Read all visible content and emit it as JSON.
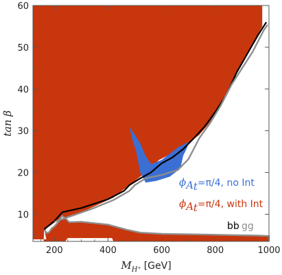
{
  "chart_data": {
    "type": "region",
    "xlabel": {
      "symbol": "M",
      "subscript": "H⁺",
      "unit": "[GeV]"
    },
    "ylabel": "tan β",
    "xlim": [
      120,
      1000
    ],
    "ylim": [
      3.5,
      60
    ],
    "x_ticks": [
      200,
      400,
      600,
      800,
      1000
    ],
    "y_ticks": [
      10,
      20,
      30,
      40,
      50,
      60
    ],
    "grid": false,
    "legend_position": "bottom-right",
    "colors": {
      "with_int": "#C8360D",
      "no_int": "#3B6FD4",
      "bb_line": "#000000",
      "gg_line": "#8E8E8E",
      "background": "#FFFFFF"
    },
    "regions": [
      {
        "label": "ϕ_{A_t}=π/4, with Int",
        "label_parts": {
          "lhs": "ϕ",
          "sub": "A",
          "subsub": "t",
          "rhs": "=π/4, with Int"
        },
        "color": "#C8360D",
        "boundary": [
          [
            120,
            60
          ],
          [
            975,
            60
          ],
          [
            975,
            55
          ],
          [
            880,
            44
          ],
          [
            820,
            36
          ],
          [
            780,
            32
          ],
          [
            740,
            29
          ],
          [
            700,
            27
          ],
          [
            670,
            26
          ],
          [
            620,
            24
          ],
          [
            590,
            23
          ],
          [
            540,
            20
          ],
          [
            480,
            17
          ],
          [
            420,
            14
          ],
          [
            320,
            11
          ],
          [
            250,
            9.5
          ],
          [
            200,
            8
          ],
          [
            168,
            6.5
          ],
          [
            165,
            5.5
          ],
          [
            170,
            4
          ],
          [
            120,
            4
          ]
        ],
        "excluded_island": [
          [
            162,
            6.3
          ],
          [
            172,
            5.5
          ],
          [
            180,
            5.7
          ],
          [
            190,
            6.6
          ],
          [
            200,
            7.1
          ],
          [
            215,
            8.2
          ],
          [
            228,
            9.6
          ],
          [
            240,
            9.1
          ],
          [
            255,
            8.1
          ],
          [
            300,
            8.2
          ],
          [
            400,
            7.5
          ],
          [
            470,
            6.3
          ],
          [
            520,
            5.6
          ],
          [
            600,
            5.3
          ],
          [
            700,
            5.2
          ],
          [
            800,
            5.1
          ],
          [
            880,
            5.0
          ],
          [
            960,
            4.9
          ],
          [
            1000,
            4.8
          ],
          [
            1000,
            3.5
          ],
          [
            420,
            3.5
          ],
          [
            415,
            4.3
          ],
          [
            250,
            4.3
          ],
          [
            240,
            3.5
          ],
          [
            160,
            3.5
          ]
        ]
      },
      {
        "label": "ϕ_{A_t}=π/4, no Int",
        "label_parts": {
          "lhs": "ϕ",
          "sub": "A",
          "subsub": "t",
          "rhs": "=π/4, no Int"
        },
        "color": "#3B6FD4",
        "boundary": [
          [
            480,
            31
          ],
          [
            520,
            27
          ],
          [
            540,
            24
          ],
          [
            560,
            22
          ],
          [
            600,
            23
          ],
          [
            640,
            25
          ],
          [
            660,
            26
          ],
          [
            690,
            27
          ],
          [
            700,
            27.4
          ],
          [
            695,
            26
          ],
          [
            680,
            24
          ],
          [
            670,
            21
          ],
          [
            630,
            19
          ],
          [
            580,
            18
          ],
          [
            540,
            17.6
          ],
          [
            520,
            20
          ],
          [
            505,
            25
          ],
          [
            490,
            28
          ]
        ]
      }
    ],
    "contours": [
      {
        "name": "bb",
        "color": "#000000",
        "points": [
          [
            162,
            6.4
          ],
          [
            200,
            8.4
          ],
          [
            230,
            10.5
          ],
          [
            300,
            11.5
          ],
          [
            400,
            13.6
          ],
          [
            460,
            15.6
          ],
          [
            480,
            17
          ],
          [
            520,
            18.6
          ],
          [
            560,
            20
          ],
          [
            600,
            22.2
          ],
          [
            640,
            23.6
          ],
          [
            680,
            25.6
          ],
          [
            720,
            28.2
          ],
          [
            760,
            31
          ],
          [
            800,
            34.5
          ],
          [
            840,
            38.5
          ],
          [
            880,
            44
          ],
          [
            920,
            48.5
          ],
          [
            960,
            53
          ],
          [
            990,
            56
          ]
        ]
      },
      {
        "name": "gg",
        "color": "#8E8E8E",
        "points": [
          [
            200,
            8.2
          ],
          [
            260,
            9.5
          ],
          [
            340,
            11.3
          ],
          [
            420,
            13.4
          ],
          [
            480,
            15.6
          ],
          [
            500,
            17
          ],
          [
            540,
            18.6
          ],
          [
            600,
            19.4
          ],
          [
            660,
            20.6
          ],
          [
            700,
            23.2
          ],
          [
            740,
            28.2
          ],
          [
            780,
            31.8
          ],
          [
            820,
            36
          ],
          [
            860,
            41
          ],
          [
            900,
            45
          ],
          [
            940,
            49
          ],
          [
            980,
            54
          ],
          [
            995,
            55.4
          ]
        ]
      }
    ],
    "contour_legend": [
      "bb",
      "gg"
    ]
  }
}
